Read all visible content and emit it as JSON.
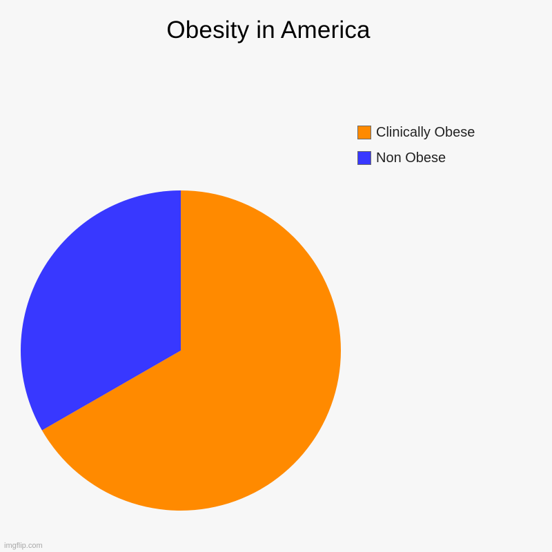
{
  "chart_data": {
    "type": "pie",
    "title": "Obesity in America",
    "categories": [
      "Clinically Obese",
      "Non Obese"
    ],
    "values": [
      66.7,
      33.3
    ],
    "colors": [
      "#ff8a00",
      "#3838ff"
    ],
    "legend_position": "top-right",
    "start_angle": "12 o'clock, clockwise"
  },
  "legend": {
    "items": [
      {
        "label": "Clinically Obese",
        "color": "#ff8a00"
      },
      {
        "label": "Non Obese",
        "color": "#3838ff"
      }
    ]
  },
  "watermark": "imgflip.com"
}
